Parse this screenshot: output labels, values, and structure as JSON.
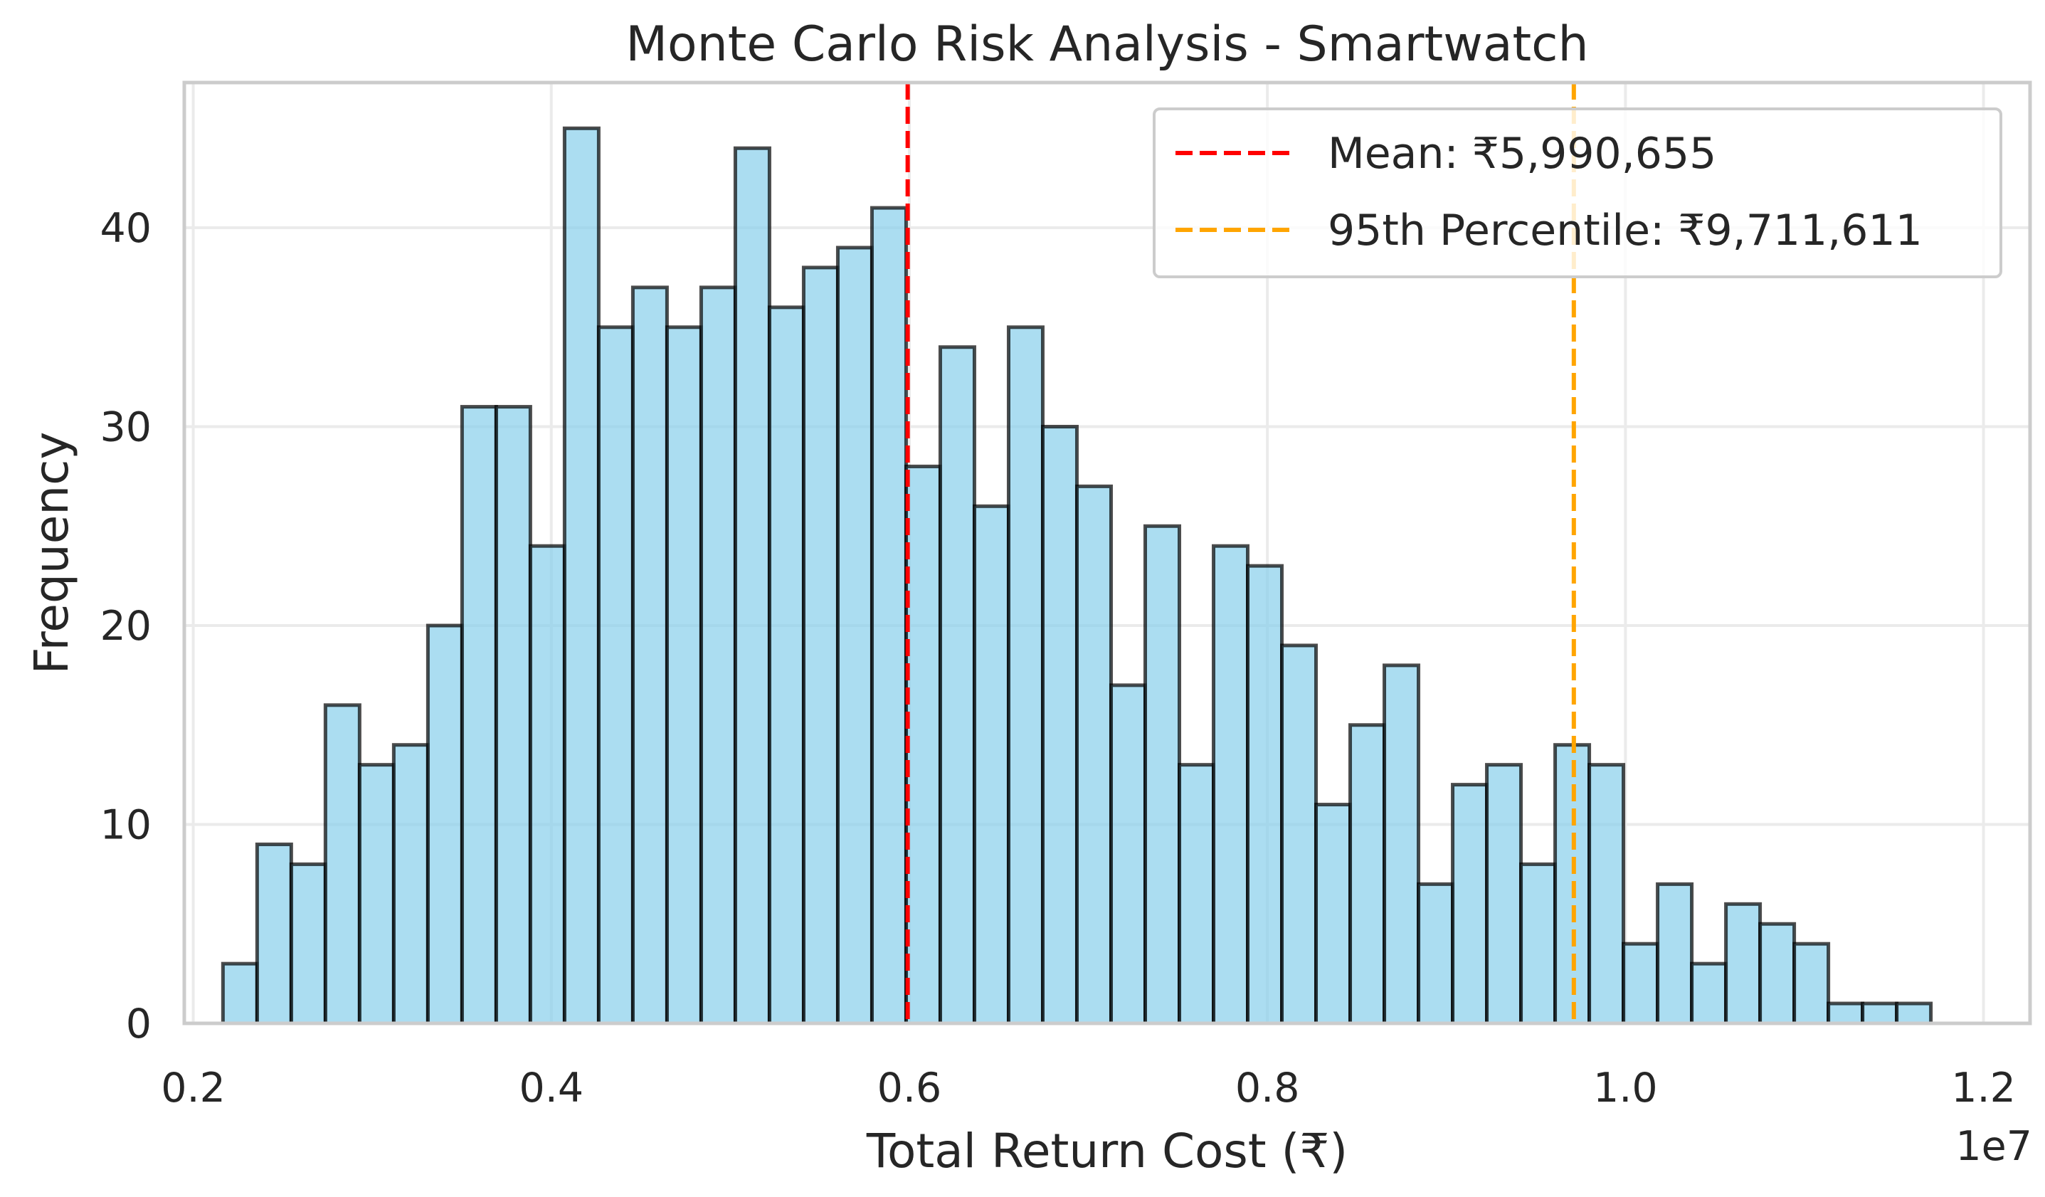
{
  "chart_data": {
    "type": "bar",
    "title": "Monte Carlo Risk Analysis - Smartwatch",
    "xlabel": "Total Return Cost (₹)",
    "ylabel": "Frequency",
    "x_offset_text": "1e7",
    "xlim": [
      0.195,
      1.226
    ],
    "ylim": [
      0,
      47.3
    ],
    "x_ticks": [
      0.2,
      0.4,
      0.6,
      0.8,
      1.0,
      1.2
    ],
    "x_tick_labels": [
      "0.2",
      "0.4",
      "0.6",
      "0.8",
      "1.0",
      "1.2"
    ],
    "y_ticks": [
      0,
      10,
      20,
      30,
      40
    ],
    "y_tick_labels": [
      "0",
      "10",
      "20",
      "30",
      "40"
    ],
    "grid": true,
    "legend_position": "top-right",
    "bin_start": 0.2166,
    "bin_end": 1.1706,
    "frequencies": [
      3,
      9,
      8,
      16,
      13,
      14,
      20,
      31,
      31,
      24,
      45,
      35,
      37,
      35,
      37,
      44,
      36,
      38,
      39,
      41,
      28,
      34,
      26,
      35,
      30,
      27,
      17,
      25,
      13,
      24,
      23,
      19,
      11,
      15,
      18,
      7,
      12,
      13,
      8,
      14,
      13,
      4,
      7,
      3,
      6,
      5,
      4,
      1,
      1,
      1
    ],
    "reference_lines": [
      {
        "label": "Mean: ₹5,990,655",
        "value": 0.5990655,
        "color": "#ff0000"
      },
      {
        "label": "95th Percentile: ₹9,711,611",
        "value": 0.9711611,
        "color": "#ffa500"
      }
    ],
    "bar_color": "#87ceeb",
    "bar_edge_color": "#000000"
  }
}
